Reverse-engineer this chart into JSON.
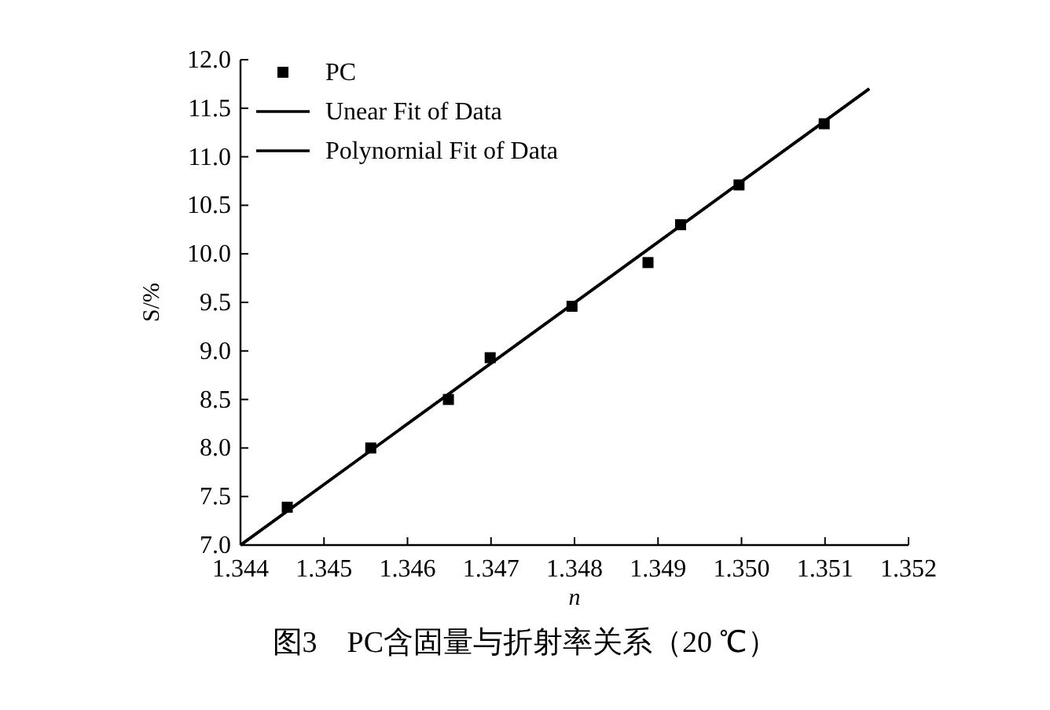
{
  "chart_data": {
    "type": "scatter",
    "title": "图3　PC含固量与折射率关系（20 ℃）",
    "xlabel": "n",
    "ylabel": "S/%",
    "xlim": [
      1.344,
      1.352
    ],
    "ylim": [
      7.0,
      12.0
    ],
    "xticks": [
      {
        "value": 1.344,
        "label": "1.344"
      },
      {
        "value": 1.345,
        "label": "1.345"
      },
      {
        "value": 1.346,
        "label": "1.346"
      },
      {
        "value": 1.347,
        "label": "1.347"
      },
      {
        "value": 1.348,
        "label": "1.348"
      },
      {
        "value": 1.349,
        "label": "1.349"
      },
      {
        "value": 1.35,
        "label": "1.350"
      },
      {
        "value": 1.351,
        "label": "1.351"
      },
      {
        "value": 1.352,
        "label": "1.352"
      }
    ],
    "yticks": [
      {
        "value": 7,
        "label": "7.0"
      },
      {
        "value": 7.5,
        "label": "7.5"
      },
      {
        "value": 8,
        "label": "8.0"
      },
      {
        "value": 8.5,
        "label": "8.5"
      },
      {
        "value": 9,
        "label": "9.0"
      },
      {
        "value": 9.5,
        "label": "9.5"
      },
      {
        "value": 10,
        "label": "10.0"
      },
      {
        "value": 10.5,
        "label": "10.5"
      },
      {
        "value": 11,
        "label": "11.0"
      },
      {
        "value": 11.5,
        "label": "11.5"
      },
      {
        "value": 12,
        "label": "12.0"
      }
    ],
    "grid": false,
    "legend": "top left",
    "series": [
      {
        "name": "PC",
        "marker": "square",
        "color": "#000000",
        "x": [
          1.34456,
          1.34556,
          1.34649,
          1.34699,
          1.34797,
          1.34888,
          1.34927,
          1.34997,
          1.35099
        ],
        "values": [
          7.39,
          8.0,
          8.5,
          8.93,
          9.46,
          9.91,
          10.3,
          10.71,
          11.34
        ]
      },
      {
        "name": "Unear Fit of Data",
        "type": "line",
        "marker": "none",
        "color": "#000000",
        "x": [
          1.344,
          1.35153
        ],
        "values": [
          7.0,
          11.7
        ]
      },
      {
        "name": "Polynornial Fit of Data",
        "type": "line",
        "marker": "none",
        "color": "#000000",
        "x": [
          1.344,
          1.35153
        ],
        "values": [
          7.0,
          11.7
        ]
      }
    ]
  }
}
